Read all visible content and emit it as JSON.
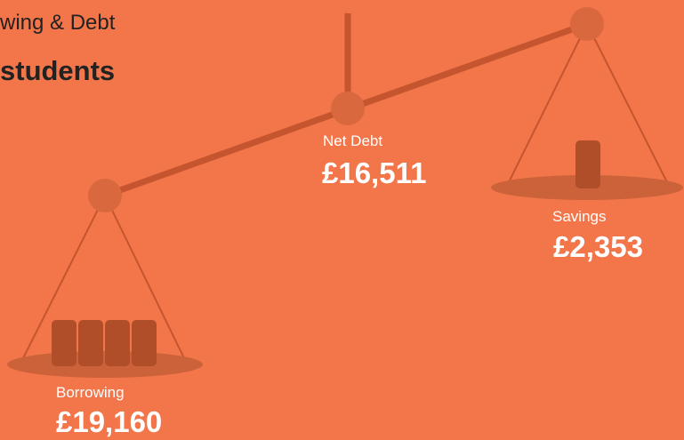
{
  "header": {
    "title": "wing & Debt",
    "subtitle": "students"
  },
  "items": [
    {
      "label": "Net Debt",
      "value": "£16,511"
    },
    {
      "label": "Savings",
      "value": "£2,353"
    },
    {
      "label": "Borrowing",
      "value": "£19,160"
    }
  ]
}
